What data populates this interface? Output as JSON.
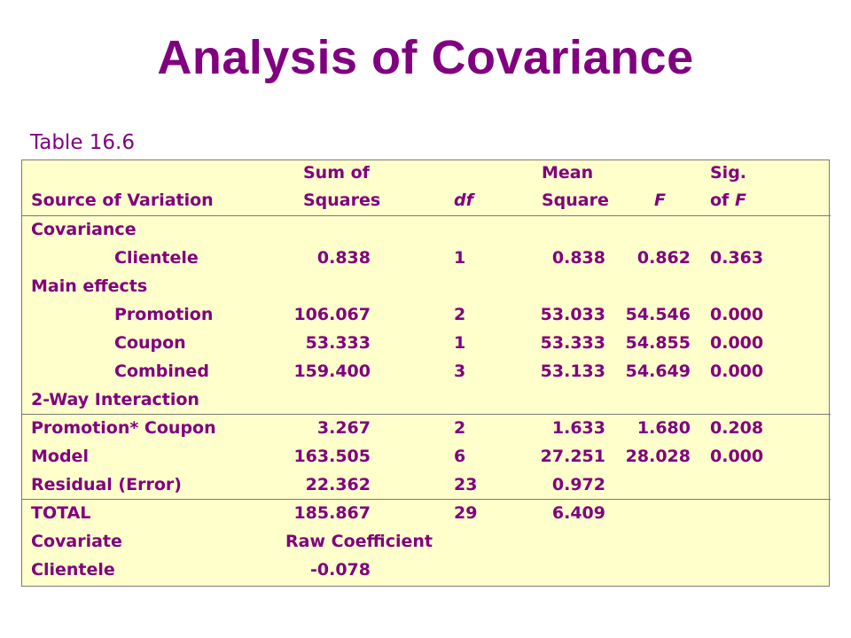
{
  "title": "Analysis of Covariance",
  "caption": "Table 16.6",
  "header": {
    "line1": {
      "ss": "Sum of",
      "ms": "Mean",
      "sig": "Sig."
    },
    "line2": {
      "source": "Source of Variation",
      "ss": "Squares",
      "df": "df",
      "ms": "Square",
      "f": "F",
      "sig_pre": "of ",
      "sig_f": "F"
    }
  },
  "sections": {
    "covariance": "Covariance",
    "main_effects": "Main effects",
    "interaction": "2-Way Interaction"
  },
  "rows": [
    {
      "source": "Clientele",
      "ss": "0.838",
      "df": "1",
      "ms": "0.838",
      "f": "0.862",
      "sig": "0.363"
    },
    {
      "source": "Promotion",
      "ss": "106.067",
      "df": "2",
      "ms": "53.033",
      "f": "54.546",
      "sig": "0.000"
    },
    {
      "source": "Coupon",
      "ss": "53.333",
      "df": "1",
      "ms": "53.333",
      "f": "54.855",
      "sig": "0.000"
    },
    {
      "source": "Combined",
      "ss": "159.400",
      "df": "3",
      "ms": "53.133",
      "f": "54.649",
      "sig": "0.000"
    },
    {
      "source": "Promotion* Coupon",
      "ss": "3.267",
      "df": "2",
      "ms": "1.633",
      "f": "1.680",
      "sig": "0.208"
    },
    {
      "source": "Model",
      "ss": "163.505",
      "df": "6",
      "ms": "27.251",
      "f": "28.028",
      "sig": "0.000"
    },
    {
      "source": "Residual (Error)",
      "ss": "22.362",
      "df": "23",
      "ms": "0.972",
      "f": "",
      "sig": ""
    },
    {
      "source": "TOTAL",
      "ss": "185.867",
      "df": "29",
      "ms": "6.409",
      "f": "",
      "sig": ""
    }
  ],
  "covariate": {
    "label": "Covariate",
    "header": "Raw Coefficient",
    "name": "Clientele",
    "value": "-0.078"
  },
  "colors": {
    "text": "#800080",
    "panel": "#ffffcc",
    "rule": "#7a7a7a"
  }
}
